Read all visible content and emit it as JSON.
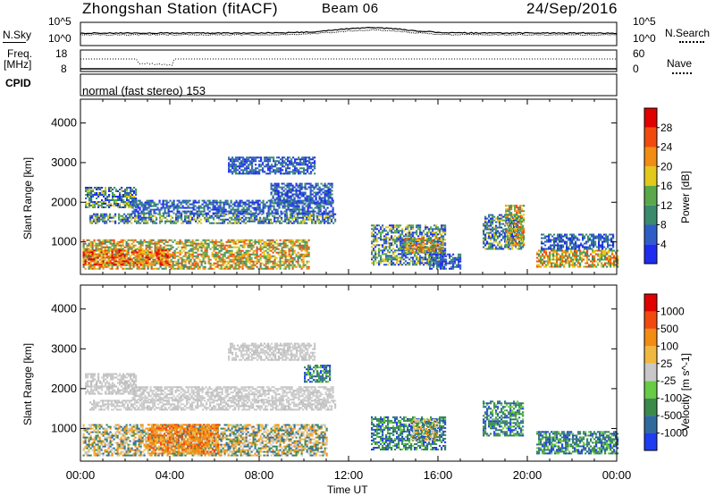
{
  "header": {
    "station": "Zhongshan Station (fitACF)",
    "beam": "Beam 06",
    "date": "24/Sep/2016"
  },
  "panels": {
    "nsky_label": "N.Sky",
    "nsearch_label": "N.Search",
    "freq_label": "Freq.",
    "freq_unit": "[MHz]",
    "nave_label": "Nave",
    "cpid_label": "CPID",
    "cpid_text": "normal (fast stereo) 153",
    "noise_left_ticks": [
      "10^5",
      "10^0"
    ],
    "noise_right_ticks": [
      "10^5",
      "10^0"
    ],
    "freq_left_ticks": [
      "18",
      "8"
    ],
    "freq_right_ticks": [
      "60",
      "0"
    ]
  },
  "chart_data": [
    {
      "type": "heatmap",
      "name": "power",
      "title": "",
      "xlabel": "Time UT",
      "ylabel": "Slant Range [km]",
      "colorbar_label": "Power [dB]",
      "x_ticks": [
        "00:00",
        "04:00",
        "08:00",
        "12:00",
        "16:00",
        "20:00",
        "00:00"
      ],
      "xlim_hours": [
        0,
        24
      ],
      "y_ticks": [
        1000,
        2000,
        3000,
        4000
      ],
      "ylim": [
        180,
        4600
      ],
      "colorbar_ticks": [
        4,
        8,
        12,
        16,
        20,
        24,
        28
      ],
      "colorbar_colors": [
        "#1e2cf0",
        "#2f5dc8",
        "#3a8a6e",
        "#5aa84a",
        "#e2c91a",
        "#f28c12",
        "#f24a0e",
        "#e00000"
      ],
      "regions": [
        {
          "t0": 0.1,
          "t1": 10.2,
          "r0": 300,
          "r1": 1050,
          "level": "high"
        },
        {
          "t0": 0.1,
          "t1": 4.0,
          "r0": 400,
          "r1": 800,
          "level": "peak"
        },
        {
          "t0": 0.4,
          "t1": 11.4,
          "r0": 1450,
          "r1": 1700,
          "level": "mid"
        },
        {
          "t0": 0.2,
          "t1": 2.5,
          "r0": 1850,
          "r1": 2350,
          "level": "mid"
        },
        {
          "t0": 2.3,
          "t1": 11.3,
          "r0": 1700,
          "r1": 2050,
          "level": "low"
        },
        {
          "t0": 8.5,
          "t1": 11.3,
          "r0": 1950,
          "r1": 2450,
          "level": "low"
        },
        {
          "t0": 6.6,
          "t1": 10.5,
          "r0": 2700,
          "r1": 3150,
          "level": "low"
        },
        {
          "t0": 13.0,
          "t1": 16.3,
          "r0": 400,
          "r1": 1400,
          "level": "mid"
        },
        {
          "t0": 14.5,
          "t1": 16.2,
          "r0": 700,
          "r1": 1100,
          "level": "high"
        },
        {
          "t0": 15.6,
          "t1": 17.0,
          "r0": 300,
          "r1": 700,
          "level": "low"
        },
        {
          "t0": 18.0,
          "t1": 19.8,
          "r0": 800,
          "r1": 1700,
          "level": "mid"
        },
        {
          "t0": 19.0,
          "t1": 19.8,
          "r0": 900,
          "r1": 1900,
          "level": "high"
        },
        {
          "t0": 20.4,
          "t1": 24.0,
          "r0": 350,
          "r1": 800,
          "level": "high"
        },
        {
          "t0": 20.6,
          "t1": 23.8,
          "r0": 800,
          "r1": 1200,
          "level": "low"
        }
      ]
    },
    {
      "type": "heatmap",
      "name": "velocity",
      "title": "",
      "xlabel": "Time UT",
      "ylabel": "Slant Range [km]",
      "colorbar_label": "Velocity [m s^-1]",
      "x_ticks": [
        "00:00",
        "04:00",
        "08:00",
        "12:00",
        "16:00",
        "20:00",
        "00:00"
      ],
      "xlim_hours": [
        0,
        24
      ],
      "y_ticks": [
        1000,
        2000,
        3000,
        4000
      ],
      "ylim": [
        180,
        4600
      ],
      "colorbar_ticks": [
        1000,
        500,
        100,
        25,
        -25,
        -100,
        -500,
        -1000
      ],
      "colorbar_colors": [
        "#1e3cf0",
        "#2f6a9c",
        "#3a8a4a",
        "#66cc44",
        "#c8c8c8",
        "#f0b840",
        "#f28c12",
        "#f24a0e",
        "#e00000"
      ],
      "regions": [
        {
          "t0": 0.1,
          "t1": 11.0,
          "r0": 300,
          "r1": 1100,
          "level": "neg"
        },
        {
          "t0": 3.0,
          "t1": 6.2,
          "r0": 350,
          "r1": 1100,
          "level": "strongneg"
        },
        {
          "t0": 0.4,
          "t1": 11.4,
          "r0": 1450,
          "r1": 1700,
          "level": "zero"
        },
        {
          "t0": 0.2,
          "t1": 2.5,
          "r0": 1850,
          "r1": 2350,
          "level": "zero"
        },
        {
          "t0": 2.3,
          "t1": 11.3,
          "r0": 1700,
          "r1": 2050,
          "level": "zero"
        },
        {
          "t0": 6.6,
          "t1": 10.5,
          "r0": 2700,
          "r1": 3150,
          "level": "zero"
        },
        {
          "t0": 10.0,
          "t1": 11.2,
          "r0": 2150,
          "r1": 2600,
          "level": "pos"
        },
        {
          "t0": 13.0,
          "t1": 16.3,
          "r0": 450,
          "r1": 1300,
          "level": "pos"
        },
        {
          "t0": 14.8,
          "t1": 16.0,
          "r0": 700,
          "r1": 1200,
          "level": "neg"
        },
        {
          "t0": 18.0,
          "t1": 19.8,
          "r0": 800,
          "r1": 1700,
          "level": "pos"
        },
        {
          "t0": 20.4,
          "t1": 24.0,
          "r0": 350,
          "r1": 900,
          "level": "pos"
        }
      ]
    }
  ],
  "timeline": {
    "xlabel": "Time UT",
    "ticks": [
      "00:00",
      "04:00",
      "08:00",
      "12:00",
      "16:00",
      "20:00",
      "00:00"
    ]
  }
}
